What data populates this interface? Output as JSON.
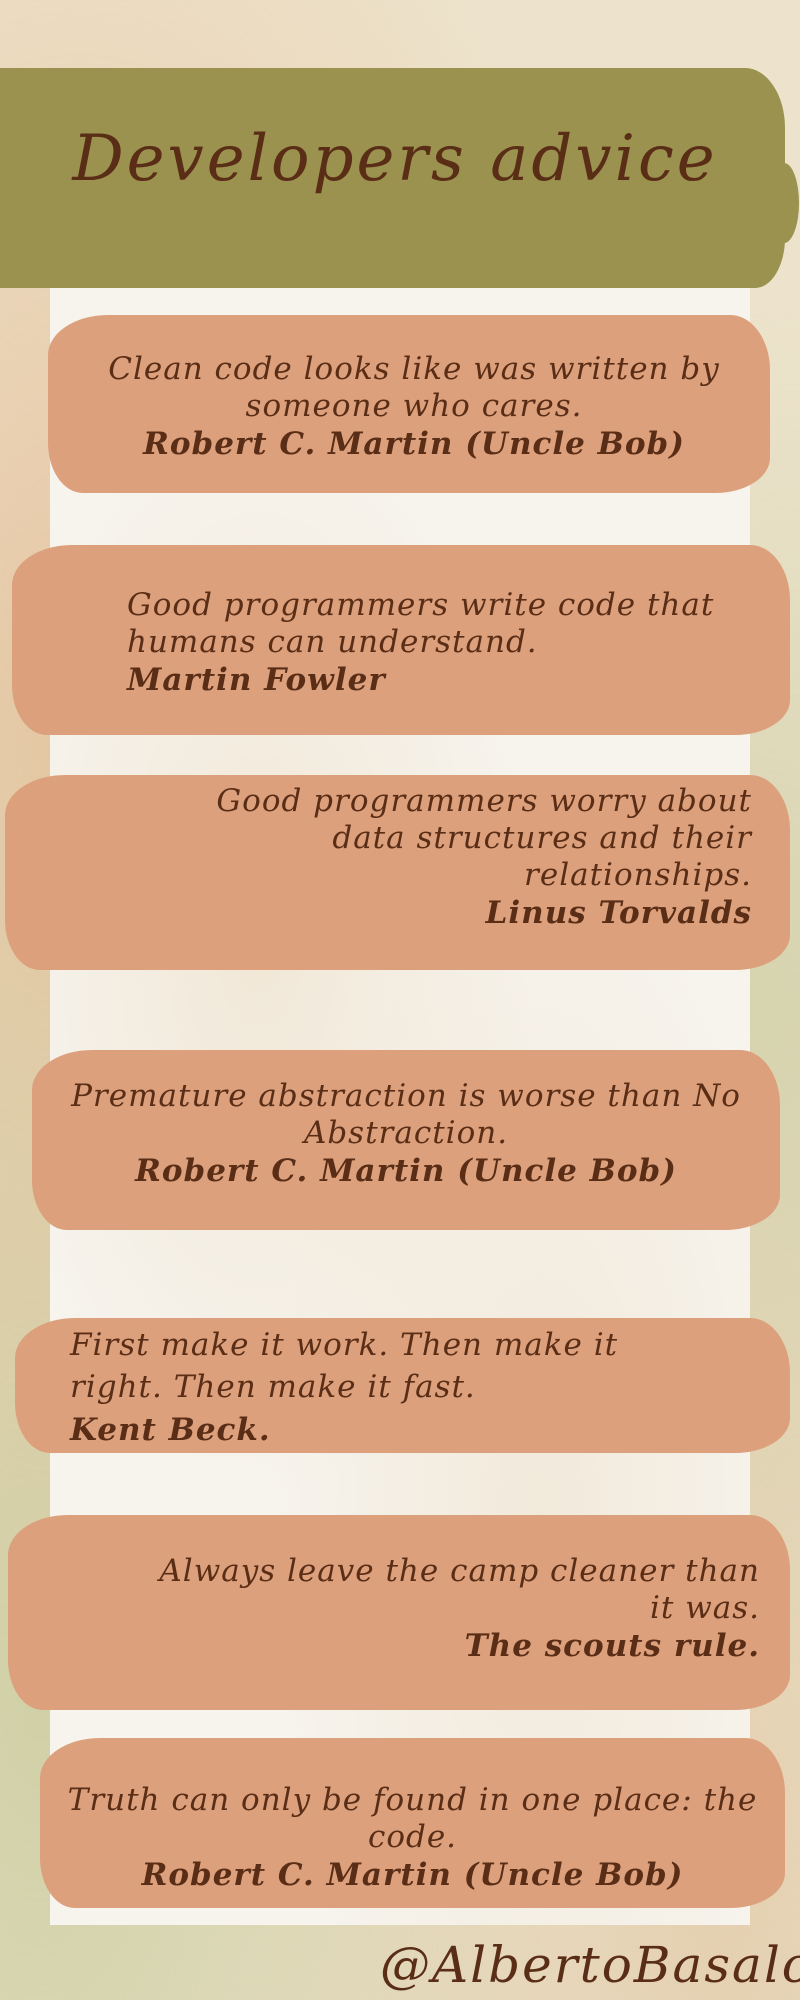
{
  "title": "Developers advice",
  "quotes": [
    {
      "text": "Clean code looks like was written by someone who cares.",
      "author": "Robert C. Martin (Uncle Bob)"
    },
    {
      "text": "Good programmers write code that humans can understand.",
      "author": "Martin Fowler"
    },
    {
      "text": "Good programmers worry about data structures and their relationships.",
      "author": "Linus Torvalds"
    },
    {
      "text": "Premature abstraction is worse than No Abstraction.",
      "author": "Robert C. Martin (Uncle Bob)"
    },
    {
      "text": "First make it work. Then make it right. Then make it fast.",
      "author": "Kent Beck."
    },
    {
      "text": "Always leave the camp cleaner than it was.",
      "author": "The scouts rule."
    },
    {
      "text": "Truth can only be found in one place: the code.",
      "author": "Robert C. Martin (Uncle Bob)"
    }
  ],
  "handle": "@AlbertoBasalo",
  "colors": {
    "banner": "#9a924e",
    "brush": "#dda07c",
    "text": "#5a2d16",
    "paper": "#f7f4ee"
  }
}
